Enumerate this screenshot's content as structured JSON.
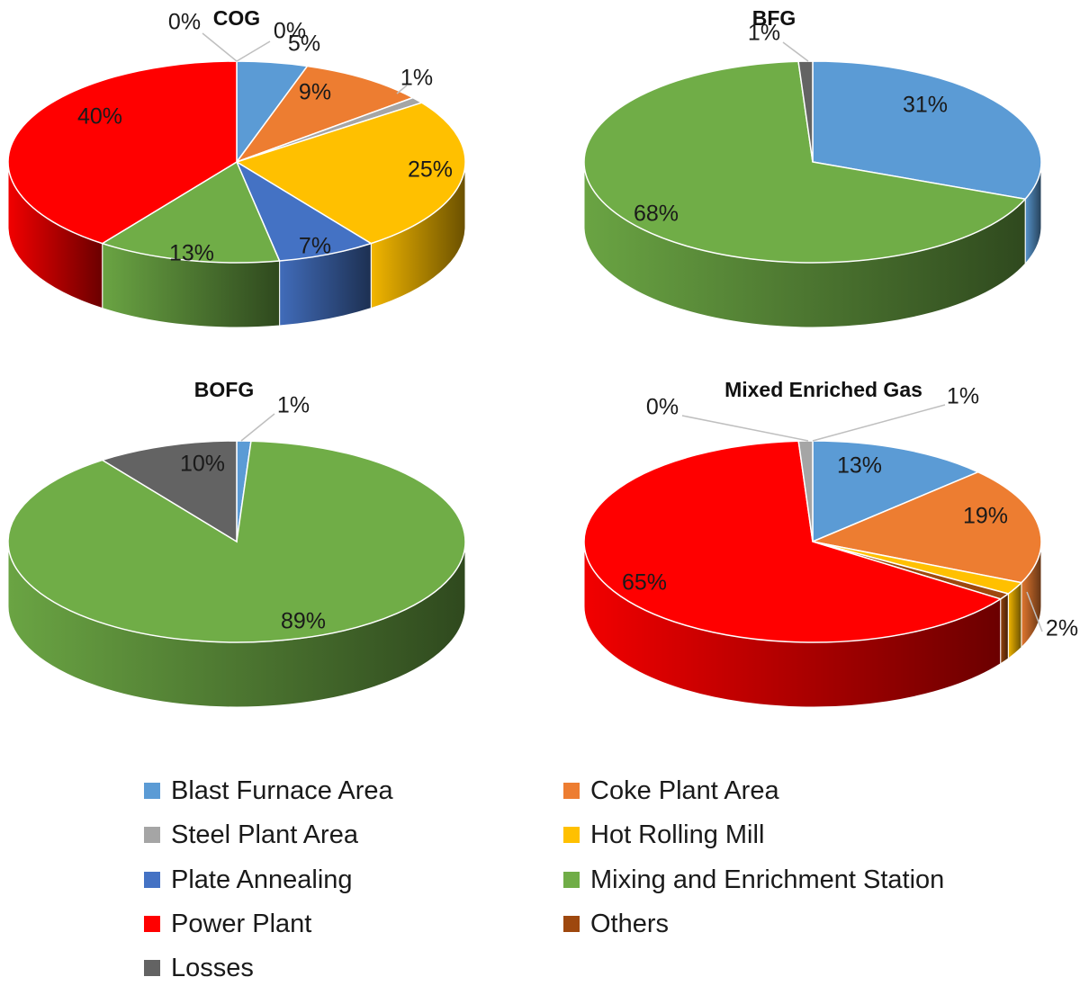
{
  "categories": [
    "Blast Furnace Area",
    "Coke Plant Area",
    "Steel Plant Area",
    "Hot Rolling Mill",
    "Plate Annealing",
    "Mixing and Enrichment Station",
    "Power Plant",
    "Others",
    "Losses"
  ],
  "colors": {
    "Blast Furnace Area": "#5b9bd5",
    "Coke Plant Area": "#ed7d31",
    "Steel Plant Area": "#a5a5a5",
    "Hot Rolling Mill": "#ffc000",
    "Plate Annealing": "#4472c4",
    "Mixing and Enrichment Station": "#70ad47",
    "Power Plant": "#ff0000",
    "Others": "#9e480e",
    "Losses": "#636363"
  },
  "chart_data": [
    {
      "type": "pie",
      "title": "COG",
      "slices": [
        {
          "category": "Blast Furnace Area",
          "value": 5,
          "label": "5%"
        },
        {
          "category": "Coke Plant Area",
          "value": 9,
          "label": "9%"
        },
        {
          "category": "Steel Plant Area",
          "value": 1,
          "label": "1%"
        },
        {
          "category": "Hot Rolling Mill",
          "value": 25,
          "label": "25%"
        },
        {
          "category": "Plate Annealing",
          "value": 7,
          "label": "7%"
        },
        {
          "category": "Mixing and Enrichment Station",
          "value": 13,
          "label": "13%"
        },
        {
          "category": "Power Plant",
          "value": 40,
          "label": "40%"
        },
        {
          "category": "Others",
          "value": 0,
          "label": "0%"
        },
        {
          "category": "Losses",
          "value": 0,
          "label": "0%"
        }
      ]
    },
    {
      "type": "pie",
      "title": "BFG",
      "slices": [
        {
          "category": "Blast Furnace Area",
          "value": 31,
          "label": "31%"
        },
        {
          "category": "Mixing and Enrichment Station",
          "value": 68,
          "label": "68%"
        },
        {
          "category": "Losses",
          "value": 1,
          "label": "1%"
        }
      ]
    },
    {
      "type": "pie",
      "title": "BOFG",
      "slices": [
        {
          "category": "Blast Furnace Area",
          "value": 1,
          "label": "1%"
        },
        {
          "category": "Mixing and Enrichment Station",
          "value": 89,
          "label": "89%"
        },
        {
          "category": "Losses",
          "value": 10,
          "label": "10%"
        }
      ]
    },
    {
      "type": "pie",
      "title": "Mixed Enriched Gas",
      "slices": [
        {
          "category": "Blast Furnace Area",
          "value": 13,
          "label": "13%"
        },
        {
          "category": "Coke Plant Area",
          "value": 19,
          "label": "19%"
        },
        {
          "category": "Hot Rolling Mill",
          "value": 2,
          "label": "2%"
        },
        {
          "category": "Others",
          "value": 1,
          "label": ""
        },
        {
          "category": "Power Plant",
          "value": 65,
          "label": "65%"
        },
        {
          "category": "Losses",
          "value": 0,
          "label": "0%"
        },
        {
          "category": "Steel Plant Area",
          "value": 1,
          "label": "1%"
        }
      ]
    }
  ],
  "legend": {
    "placement": "bottom",
    "items": [
      "Blast Furnace Area",
      "Coke Plant Area",
      "Steel Plant Area",
      "Hot Rolling Mill",
      "Plate Annealing",
      "Mixing and Enrichment Station",
      "Power Plant",
      "Others",
      "Losses"
    ]
  }
}
